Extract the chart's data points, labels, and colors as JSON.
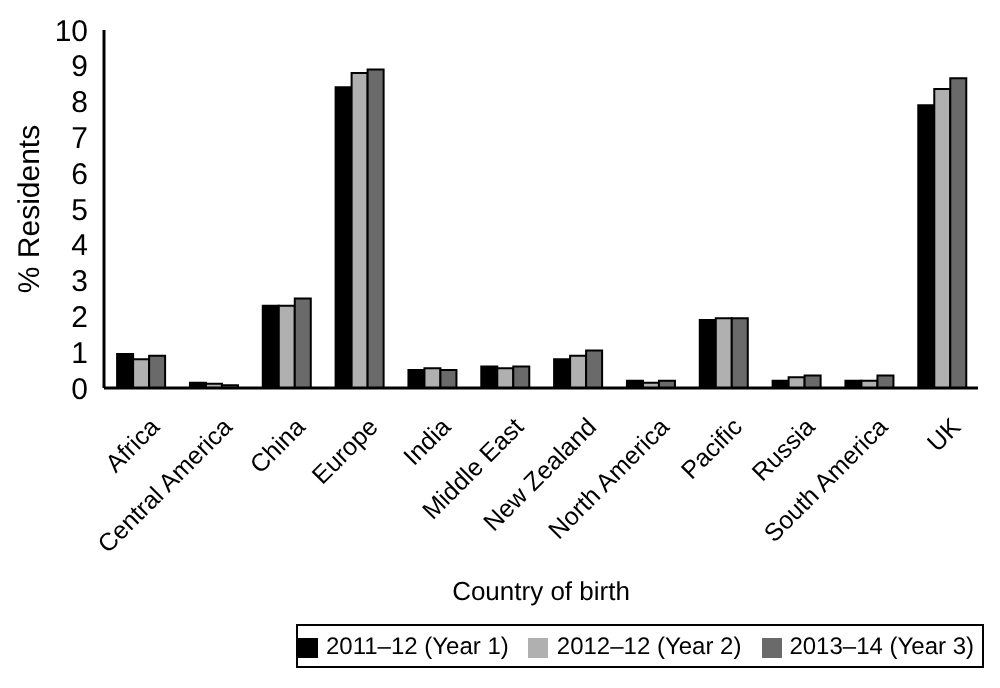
{
  "chart_data": {
    "type": "bar",
    "xlabel": "Country of birth",
    "ylabel": "% Residents",
    "categories": [
      "Africa",
      "Central America",
      "China",
      "Europe",
      "India",
      "Middle East",
      "New Zealand",
      "North America",
      "Pacific",
      "Russia",
      "South America",
      "UK"
    ],
    "series": [
      {
        "name": "2011–12 (Year 1)",
        "color": "#000000",
        "values": [
          0.95,
          0.15,
          2.3,
          8.4,
          0.5,
          0.6,
          0.8,
          0.2,
          1.9,
          0.2,
          0.2,
          7.9
        ]
      },
      {
        "name": "2012–12 (Year 2)",
        "color": "#b0b0b0",
        "values": [
          0.8,
          0.12,
          2.3,
          8.8,
          0.55,
          0.55,
          0.9,
          0.15,
          1.95,
          0.3,
          0.2,
          8.35
        ]
      },
      {
        "name": "2013–14 (Year 3)",
        "color": "#6a6a6a",
        "values": [
          0.9,
          0.08,
          2.5,
          8.9,
          0.5,
          0.6,
          1.05,
          0.2,
          1.95,
          0.35,
          0.35,
          8.65
        ]
      }
    ],
    "ylim": [
      0,
      10
    ],
    "yticks": [
      0,
      1,
      2,
      3,
      4,
      5,
      6,
      7,
      8,
      9,
      10
    ],
    "grid": false,
    "legend": "bottom"
  }
}
